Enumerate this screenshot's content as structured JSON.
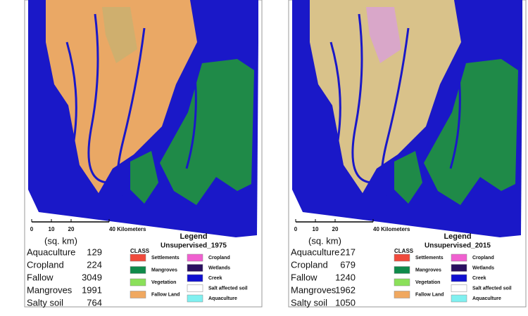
{
  "maps": [
    {
      "scale": {
        "ticks": [
          "0",
          "10",
          "20",
          "40 Kilometers"
        ],
        "unit": "(sq. km)"
      },
      "stats": [
        {
          "label": "Aquaculture",
          "value": 129
        },
        {
          "label": "Cropland",
          "value": 224
        },
        {
          "label": "Fallow",
          "value": 3049
        },
        {
          "label": "Mangroves",
          "value": 1991
        },
        {
          "label": "Salty soil",
          "value": 764
        }
      ],
      "legend": {
        "title": "Legend",
        "subtitle": "Unsupervised_1975",
        "class_label": "CLASS",
        "items": [
          {
            "name": "Settlements",
            "color": "#f04a3c"
          },
          {
            "name": "Mangroves",
            "color": "#0f8a4a"
          },
          {
            "name": "Vegetation",
            "color": "#8be05a"
          },
          {
            "name": "Fallow Land",
            "color": "#f0a860"
          },
          {
            "name": "Cropland",
            "color": "#f060d0"
          },
          {
            "name": "Wetlands",
            "color": "#2a1060"
          },
          {
            "name": "Creek",
            "color": "#1010d0"
          },
          {
            "name": "Salt affected soil",
            "color": "#ffffff"
          },
          {
            "name": "Aquaculture",
            "color": "#80f0f0"
          }
        ]
      }
    },
    {
      "scale": {
        "ticks": [
          "0",
          "10",
          "20",
          "40 Kilometers"
        ],
        "unit": "(sq. km)"
      },
      "stats": [
        {
          "label": "Aquaculture",
          "value": 217
        },
        {
          "label": "Cropland",
          "value": 679
        },
        {
          "label": "Fallow",
          "value": 1240
        },
        {
          "label": "Mangroves",
          "value": 1962
        },
        {
          "label": "Salty soil",
          "value": 1050
        }
      ],
      "legend": {
        "title": "Legend",
        "subtitle": "Unsupervised_2015",
        "class_label": "CLASS",
        "items": [
          {
            "name": "Settlements",
            "color": "#f04a3c"
          },
          {
            "name": "Mangroves",
            "color": "#0f8a4a"
          },
          {
            "name": "Vegetation",
            "color": "#8be05a"
          },
          {
            "name": "Fallow Land",
            "color": "#f0a860"
          },
          {
            "name": "Cropland",
            "color": "#f060d0"
          },
          {
            "name": "Wetlands",
            "color": "#2a1060"
          },
          {
            "name": "Creek",
            "color": "#1010d0"
          },
          {
            "name": "Salt affected soil",
            "color": "#ffffff"
          },
          {
            "name": "Aquaculture",
            "color": "#80f0f0"
          }
        ]
      }
    }
  ]
}
